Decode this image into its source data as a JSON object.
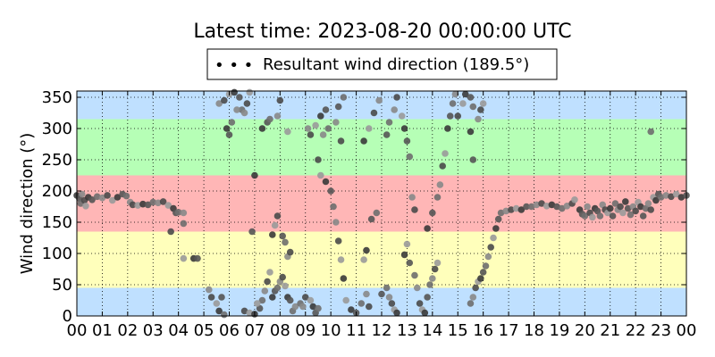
{
  "chart_data": {
    "type": "scatter",
    "title": "Latest time: 2023-08-20 00:00:00 UTC",
    "xlabel": "",
    "ylabel": "Wind direction (°)",
    "xlim": [
      0,
      24
    ],
    "ylim": [
      0,
      360
    ],
    "x_ticks": [
      "00",
      "01",
      "02",
      "03",
      "04",
      "05",
      "06",
      "07",
      "08",
      "09",
      "10",
      "11",
      "12",
      "13",
      "14",
      "15",
      "16",
      "17",
      "18",
      "19",
      "20",
      "21",
      "22",
      "23",
      "00"
    ],
    "y_ticks": [
      0,
      50,
      100,
      150,
      200,
      250,
      300,
      350
    ],
    "grid": true,
    "legend": {
      "placement": "top-center",
      "marker_text": "• • •",
      "label": "Resultant wind direction (189.5°)"
    },
    "bands": [
      {
        "from": 0,
        "to": 45,
        "color": "#bfe0ff"
      },
      {
        "from": 45,
        "to": 135,
        "color": "#ffffbb"
      },
      {
        "from": 135,
        "to": 225,
        "color": "#ffb6b6"
      },
      {
        "from": 225,
        "to": 315,
        "color": "#b6ffb6"
      },
      {
        "from": 315,
        "to": 360,
        "color": "#bfe0ff"
      }
    ],
    "series": [
      {
        "points": [
          [
            0.0,
            193
          ],
          [
            0.1,
            188
          ],
          [
            0.15,
            180
          ],
          [
            0.2,
            195
          ],
          [
            0.3,
            185
          ],
          [
            0.35,
            176
          ],
          [
            0.45,
            190
          ],
          [
            0.6,
            186
          ],
          [
            0.8,
            191
          ],
          [
            1.0,
            189
          ],
          [
            1.2,
            193
          ],
          [
            1.4,
            185
          ],
          [
            1.6,
            190
          ],
          [
            1.8,
            195
          ],
          [
            1.95,
            192
          ],
          [
            2.1,
            182
          ],
          [
            2.2,
            178
          ],
          [
            2.4,
            177
          ],
          [
            2.6,
            179
          ],
          [
            2.8,
            178
          ],
          [
            3.0,
            182
          ],
          [
            3.2,
            181
          ],
          [
            3.4,
            183
          ],
          [
            3.6,
            177
          ],
          [
            3.8,
            172
          ],
          [
            3.9,
            165
          ],
          [
            4.0,
            166
          ],
          [
            4.2,
            165
          ],
          [
            3.7,
            135
          ],
          [
            4.2,
            92
          ],
          [
            4.6,
            92
          ],
          [
            4.75,
            92
          ],
          [
            4.2,
            148
          ],
          [
            5.2,
            42
          ],
          [
            5.3,
            30
          ],
          [
            5.5,
            20
          ],
          [
            5.6,
            8
          ],
          [
            5.7,
            30
          ],
          [
            5.8,
            2
          ],
          [
            5.6,
            340
          ],
          [
            5.8,
            345
          ],
          [
            6.0,
            355
          ],
          [
            6.2,
            358
          ],
          [
            6.4,
            350
          ],
          [
            6.5,
            330
          ],
          [
            6.6,
            325
          ],
          [
            6.7,
            340
          ],
          [
            6.8,
            358
          ],
          [
            5.9,
            300
          ],
          [
            6.0,
            290
          ],
          [
            6.1,
            310
          ],
          [
            6.3,
            330
          ],
          [
            6.6,
            8
          ],
          [
            6.8,
            5
          ],
          [
            7.0,
            3
          ],
          [
            7.2,
            12
          ],
          [
            7.3,
            25
          ],
          [
            7.4,
            40
          ],
          [
            7.5,
            55
          ],
          [
            7.6,
            70
          ],
          [
            7.7,
            30
          ],
          [
            7.8,
            40
          ],
          [
            7.9,
            45
          ],
          [
            8.0,
            55
          ],
          [
            8.1,
            62
          ],
          [
            8.2,
            48
          ],
          [
            8.3,
            30
          ],
          [
            8.4,
            25
          ],
          [
            8.5,
            8
          ],
          [
            8.6,
            15
          ],
          [
            7.9,
            160
          ],
          [
            7.8,
            145
          ],
          [
            7.7,
            130
          ],
          [
            8.1,
            128
          ],
          [
            8.2,
            118
          ],
          [
            8.3,
            95
          ],
          [
            8.4,
            102
          ],
          [
            7.1,
            20
          ],
          [
            7.3,
            300
          ],
          [
            7.5,
            310
          ],
          [
            7.6,
            315
          ],
          [
            7.9,
            320
          ],
          [
            8.0,
            345
          ],
          [
            8.3,
            295
          ],
          [
            7.0,
            225
          ],
          [
            6.9,
            135
          ],
          [
            8.8,
            20
          ],
          [
            8.9,
            15
          ],
          [
            9.0,
            30
          ],
          [
            9.2,
            25
          ],
          [
            9.3,
            15
          ],
          [
            9.4,
            5
          ],
          [
            9.5,
            12
          ],
          [
            9.1,
            300
          ],
          [
            9.2,
            290
          ],
          [
            9.4,
            305
          ],
          [
            9.6,
            320
          ],
          [
            9.8,
            330
          ],
          [
            9.9,
            300
          ],
          [
            9.7,
            290
          ],
          [
            9.5,
            250
          ],
          [
            9.6,
            225
          ],
          [
            9.8,
            215
          ],
          [
            10.0,
            200
          ],
          [
            10.1,
            175
          ],
          [
            10.2,
            150
          ],
          [
            10.3,
            120
          ],
          [
            10.4,
            90
          ],
          [
            10.5,
            60
          ],
          [
            10.3,
            335
          ],
          [
            10.5,
            350
          ],
          [
            10.2,
            310
          ],
          [
            10.4,
            280
          ],
          [
            10.6,
            25
          ],
          [
            10.8,
            10
          ],
          [
            11.0,
            5
          ],
          [
            11.2,
            20
          ],
          [
            11.4,
            35
          ],
          [
            11.5,
            15
          ],
          [
            11.3,
            90
          ],
          [
            11.4,
            105
          ],
          [
            11.6,
            155
          ],
          [
            11.8,
            165
          ],
          [
            11.9,
            345
          ],
          [
            11.7,
            325
          ],
          [
            11.5,
            300
          ],
          [
            11.3,
            280
          ],
          [
            12.0,
            35
          ],
          [
            12.2,
            45
          ],
          [
            12.3,
            30
          ],
          [
            12.4,
            20
          ],
          [
            12.5,
            10
          ],
          [
            12.6,
            5
          ],
          [
            12.2,
            290
          ],
          [
            12.3,
            310
          ],
          [
            12.5,
            330
          ],
          [
            12.6,
            350
          ],
          [
            12.8,
            320
          ],
          [
            12.9,
            300
          ],
          [
            13.0,
            280
          ],
          [
            13.1,
            255
          ],
          [
            13.2,
            190
          ],
          [
            13.3,
            170
          ],
          [
            13.0,
            115
          ],
          [
            12.9,
            98
          ],
          [
            13.1,
            85
          ],
          [
            13.3,
            65
          ],
          [
            13.4,
            45
          ],
          [
            13.5,
            20
          ],
          [
            13.6,
            10
          ],
          [
            13.7,
            5
          ],
          [
            13.8,
            30
          ],
          [
            13.9,
            50
          ],
          [
            14.0,
            60
          ],
          [
            14.1,
            75
          ],
          [
            14.2,
            85
          ],
          [
            13.8,
            140
          ],
          [
            14.0,
            165
          ],
          [
            14.2,
            190
          ],
          [
            14.3,
            210
          ],
          [
            14.4,
            240
          ],
          [
            14.5,
            260
          ],
          [
            14.6,
            300
          ],
          [
            14.7,
            320
          ],
          [
            14.8,
            340
          ],
          [
            14.9,
            355
          ],
          [
            15.0,
            320
          ],
          [
            15.2,
            340
          ],
          [
            15.3,
            355
          ],
          [
            15.5,
            350
          ],
          [
            15.6,
            335
          ],
          [
            15.8,
            315
          ],
          [
            15.9,
            330
          ],
          [
            16.0,
            340
          ],
          [
            15.5,
            295
          ],
          [
            15.6,
            250
          ],
          [
            15.5,
            20
          ],
          [
            15.6,
            30
          ],
          [
            15.7,
            45
          ],
          [
            15.8,
            55
          ],
          [
            15.9,
            60
          ],
          [
            16.0,
            70
          ],
          [
            16.1,
            80
          ],
          [
            16.2,
            95
          ],
          [
            16.3,
            110
          ],
          [
            16.4,
            125
          ],
          [
            16.5,
            140
          ],
          [
            16.6,
            155
          ],
          [
            16.7,
            165
          ],
          [
            16.9,
            168
          ],
          [
            17.1,
            170
          ],
          [
            17.3,
            172
          ],
          [
            17.5,
            170
          ],
          [
            17.7,
            175
          ],
          [
            17.9,
            175
          ],
          [
            18.1,
            178
          ],
          [
            18.3,
            180
          ],
          [
            18.5,
            176
          ],
          [
            18.7,
            178
          ],
          [
            18.9,
            175
          ],
          [
            19.1,
            172
          ],
          [
            19.3,
            176
          ],
          [
            19.5,
            180
          ],
          [
            19.6,
            186
          ],
          [
            19.8,
            170
          ],
          [
            19.9,
            163
          ],
          [
            20.0,
            160
          ],
          [
            20.1,
            175
          ],
          [
            20.2,
            165
          ],
          [
            20.3,
            158
          ],
          [
            20.4,
            172
          ],
          [
            20.5,
            168
          ],
          [
            20.6,
            160
          ],
          [
            20.7,
            178
          ],
          [
            20.8,
            170
          ],
          [
            20.9,
            165
          ],
          [
            21.0,
            172
          ],
          [
            21.1,
            160
          ],
          [
            21.2,
            180
          ],
          [
            21.3,
            170
          ],
          [
            21.4,
            175
          ],
          [
            21.5,
            165
          ],
          [
            21.6,
            183
          ],
          [
            21.7,
            172
          ],
          [
            21.8,
            162
          ],
          [
            21.9,
            175
          ],
          [
            22.0,
            168
          ],
          [
            22.1,
            182
          ],
          [
            22.2,
            175
          ],
          [
            22.3,
            160
          ],
          [
            22.4,
            172
          ],
          [
            22.5,
            180
          ],
          [
            22.6,
            170
          ],
          [
            22.7,
            190
          ],
          [
            22.8,
            185
          ],
          [
            22.9,
            195
          ],
          [
            23.0,
            190
          ],
          [
            23.2,
            193
          ],
          [
            23.4,
            191
          ],
          [
            23.6,
            195
          ],
          [
            23.8,
            190
          ],
          [
            24.0,
            193
          ],
          [
            22.6,
            295
          ]
        ]
      }
    ]
  }
}
